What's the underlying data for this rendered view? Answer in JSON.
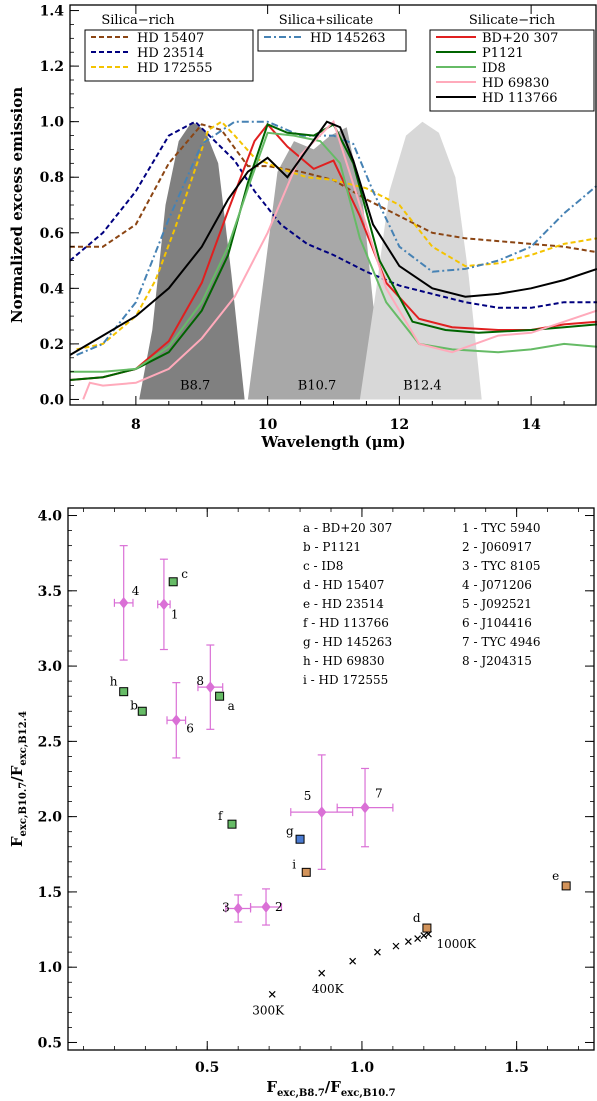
{
  "chart_data": [
    {
      "type": "line",
      "xlabel": "Wavelength (μm)",
      "ylabel": "Normalized excess emission",
      "xlim": [
        7,
        15
      ],
      "ylim": [
        -0.02,
        1.42
      ],
      "xticks": [
        8,
        10,
        12,
        14
      ],
      "yticks": [
        0.0,
        0.2,
        0.4,
        0.6,
        0.8,
        1.0,
        1.2,
        1.4
      ],
      "grid": false,
      "filters": [
        {
          "name": "B8.7",
          "color": "#808080",
          "center": 8.9,
          "halfwidth": 0.65,
          "x": [
            8.05,
            8.25,
            8.45,
            8.65,
            8.85,
            9.05,
            9.25,
            9.45,
            9.65
          ],
          "y": [
            0.0,
            0.25,
            0.7,
            0.93,
            1.0,
            0.97,
            0.85,
            0.45,
            0.0
          ]
        },
        {
          "name": "B10.7",
          "color": "#a8a8a8",
          "center": 10.75,
          "halfwidth": 0.9,
          "x": [
            9.7,
            9.95,
            10.15,
            10.4,
            10.7,
            10.95,
            11.2,
            11.45,
            11.75
          ],
          "y": [
            0.0,
            0.45,
            0.82,
            0.93,
            0.9,
            0.95,
            0.98,
            0.7,
            0.0
          ]
        },
        {
          "name": "B12.4",
          "color": "#d8d8d8",
          "center": 12.35,
          "halfwidth": 0.8,
          "x": [
            11.4,
            11.65,
            11.85,
            12.1,
            12.35,
            12.6,
            12.85,
            13.05,
            13.25
          ],
          "y": [
            0.0,
            0.4,
            0.75,
            0.95,
            1.0,
            0.96,
            0.8,
            0.45,
            0.0
          ]
        }
      ],
      "legend_groups": [
        {
          "title": "Silica−rich",
          "placement": "top-left",
          "entries": [
            "HD 15407",
            "HD 23514",
            "HD 172555"
          ]
        },
        {
          "title": "Silica+silicate",
          "placement": "top-center",
          "entries": [
            "HD 145263"
          ]
        },
        {
          "title": "Silicate−rich",
          "placement": "top-right",
          "entries": [
            "BD+20 307",
            "P1121",
            "ID8",
            "HD 69830",
            "HD 113766"
          ]
        }
      ],
      "series": [
        {
          "name": "HD 15407",
          "color": "#8b4513",
          "dash": "dashed",
          "x": [
            7,
            7.5,
            8,
            8.5,
            9,
            9.3,
            9.7,
            10,
            10.5,
            11,
            11.5,
            12,
            12.5,
            13,
            13.5,
            14,
            14.5,
            15
          ],
          "y": [
            0.55,
            0.55,
            0.63,
            0.85,
            0.99,
            0.97,
            0.84,
            0.84,
            0.82,
            0.79,
            0.72,
            0.66,
            0.6,
            0.58,
            0.57,
            0.56,
            0.55,
            0.53
          ]
        },
        {
          "name": "HD 23514",
          "color": "#00007f",
          "dash": "dashed",
          "x": [
            7,
            7.5,
            8,
            8.5,
            8.9,
            9.2,
            9.5,
            9.8,
            10.2,
            10.6,
            11,
            11.5,
            12,
            12.5,
            13,
            13.5,
            14,
            14.5,
            15
          ],
          "y": [
            0.5,
            0.6,
            0.75,
            0.95,
            1.0,
            0.93,
            0.86,
            0.75,
            0.63,
            0.56,
            0.52,
            0.46,
            0.41,
            0.38,
            0.35,
            0.33,
            0.33,
            0.35,
            0.35
          ]
        },
        {
          "name": "HD 172555",
          "color": "#f4c300",
          "dash": "dashed",
          "x": [
            7.1,
            7.5,
            8,
            8.3,
            8.6,
            8.9,
            9.1,
            9.3,
            9.5,
            9.8,
            10.2,
            10.6,
            11,
            11.5,
            12,
            12.5,
            13,
            13.5,
            14,
            14.5,
            15
          ],
          "y": [
            0.18,
            0.2,
            0.3,
            0.43,
            0.62,
            0.83,
            0.97,
            1.0,
            0.95,
            0.87,
            0.83,
            0.8,
            0.79,
            0.76,
            0.7,
            0.55,
            0.48,
            0.49,
            0.52,
            0.56,
            0.58
          ]
        },
        {
          "name": "HD 145263",
          "color": "#4682b4",
          "dash": "dashdot",
          "x": [
            7.1,
            7.5,
            8,
            8.5,
            9,
            9.5,
            10,
            10.5,
            11,
            11.3,
            11.6,
            12,
            12.5,
            13,
            13.5,
            14,
            14.5,
            15
          ],
          "y": [
            0.16,
            0.2,
            0.35,
            0.65,
            0.92,
            1.0,
            1.0,
            0.95,
            0.95,
            0.92,
            0.75,
            0.55,
            0.46,
            0.47,
            0.5,
            0.55,
            0.67,
            0.77
          ]
        },
        {
          "name": "BD+20 307",
          "color": "#e02020",
          "dash": "solid",
          "x": [
            7,
            7.5,
            8,
            8.5,
            9,
            9.4,
            9.8,
            10,
            10.3,
            10.7,
            11,
            11.4,
            11.8,
            12.3,
            12.8,
            13.5,
            14,
            14.5,
            15
          ],
          "y": [
            0.07,
            0.08,
            0.11,
            0.21,
            0.42,
            0.68,
            0.93,
            0.99,
            0.91,
            0.83,
            0.86,
            0.66,
            0.42,
            0.29,
            0.26,
            0.25,
            0.25,
            0.27,
            0.28
          ]
        },
        {
          "name": "P1121",
          "color": "#006400",
          "dash": "solid",
          "x": [
            7,
            7.5,
            8,
            8.5,
            9,
            9.4,
            9.7,
            10,
            10.3,
            10.7,
            11,
            11.3,
            11.7,
            12.2,
            12.7,
            13.2,
            14,
            14.5,
            15
          ],
          "y": [
            0.07,
            0.08,
            0.11,
            0.17,
            0.32,
            0.52,
            0.78,
            0.99,
            0.96,
            0.95,
            0.99,
            0.85,
            0.5,
            0.28,
            0.25,
            0.24,
            0.25,
            0.26,
            0.27
          ]
        },
        {
          "name": "ID8",
          "color": "#66bb66",
          "dash": "solid",
          "x": [
            7,
            7.5,
            8,
            8.5,
            9,
            9.4,
            9.7,
            10,
            10.4,
            10.8,
            11.1,
            11.4,
            11.8,
            12.3,
            12.8,
            13.5,
            14,
            14.5,
            15
          ],
          "y": [
            0.1,
            0.1,
            0.11,
            0.19,
            0.35,
            0.55,
            0.76,
            0.96,
            0.95,
            0.93,
            0.85,
            0.58,
            0.35,
            0.2,
            0.18,
            0.17,
            0.18,
            0.2,
            0.19
          ]
        },
        {
          "name": "HD 69830",
          "color": "#ffaabb",
          "dash": "solid",
          "x": [
            7.2,
            7.3,
            7.5,
            8,
            8.5,
            9,
            9.5,
            10,
            10.5,
            11,
            11.4,
            11.8,
            12.3,
            12.8,
            13.5,
            14,
            14.5,
            15
          ],
          "y": [
            0.0,
            0.06,
            0.05,
            0.06,
            0.11,
            0.22,
            0.37,
            0.6,
            0.88,
            1.0,
            0.7,
            0.4,
            0.2,
            0.17,
            0.23,
            0.24,
            0.28,
            0.32
          ]
        },
        {
          "name": "HD 113766",
          "color": "#000000",
          "dash": "solid",
          "x": [
            7,
            7.5,
            8,
            8.5,
            9,
            9.4,
            9.7,
            10,
            10.3,
            10.6,
            10.9,
            11.1,
            11.3,
            11.6,
            12,
            12.5,
            13,
            13.5,
            14,
            14.5,
            15
          ],
          "y": [
            0.16,
            0.23,
            0.3,
            0.4,
            0.55,
            0.72,
            0.82,
            0.87,
            0.8,
            0.9,
            1.0,
            0.98,
            0.86,
            0.63,
            0.48,
            0.4,
            0.37,
            0.38,
            0.4,
            0.43,
            0.47
          ]
        }
      ]
    },
    {
      "type": "scatter",
      "xlabel_main": "F",
      "xlabel_sub": "exc,B8.7",
      "xlabel_sep": "/F",
      "xlabel_sub2": "exc,B10.7",
      "ylabel_main": "F",
      "ylabel_sub": "exc,B10.7",
      "ylabel_sep": "/F",
      "ylabel_sub2": "exc,B12.4",
      "xlim": [
        0.05,
        1.75
      ],
      "ylim": [
        0.45,
        4.05
      ],
      "xticks": [
        0.5,
        1.0,
        1.5
      ],
      "xtick_labels": [
        "0.5",
        "1.0",
        "1.5"
      ],
      "yticks": [
        0.5,
        1.0,
        1.5,
        2.0,
        2.5,
        3.0,
        3.5,
        4.0
      ],
      "ytick_labels": [
        "0.5",
        "1.0",
        "1.5",
        "2.0",
        "2.5",
        "3.0",
        "3.5",
        "4.0"
      ],
      "grid": false,
      "legend_placement": "top-right",
      "legend_left": [
        "a - BD+20 307",
        "b - P1121",
        "c - ID8",
        "d - HD 15407",
        "e - HD 23514",
        "f - HD 113766",
        "g - HD 145263",
        "h - HD 69830",
        "i - HD 172555"
      ],
      "legend_right": [
        "1 - TYC 5940",
        "2 - J060917",
        "3 - TYC 8105",
        "4 - J071206",
        "5 - J092521",
        "6 - J104416",
        "7 - TYC 4946",
        "8 - J204315"
      ],
      "letter_points": [
        {
          "label": "a",
          "x": 0.54,
          "y": 2.8,
          "color": "#66bb66"
        },
        {
          "label": "b",
          "x": 0.29,
          "y": 2.7,
          "color": "#66bb66"
        },
        {
          "label": "c",
          "x": 0.39,
          "y": 3.56,
          "color": "#66bb66"
        },
        {
          "label": "d",
          "x": 1.21,
          "y": 1.26,
          "color": "#d2935a"
        },
        {
          "label": "e",
          "x": 1.66,
          "y": 1.54,
          "color": "#d2935a"
        },
        {
          "label": "f",
          "x": 0.58,
          "y": 1.95,
          "color": "#66bb66"
        },
        {
          "label": "g",
          "x": 0.8,
          "y": 1.85,
          "color": "#4a7ad0"
        },
        {
          "label": "h",
          "x": 0.23,
          "y": 2.83,
          "color": "#66bb66"
        },
        {
          "label": "i",
          "x": 0.82,
          "y": 1.63,
          "color": "#d2935a"
        }
      ],
      "number_points": [
        {
          "label": "1",
          "x": 0.36,
          "y": 3.41,
          "xerr": 0.02,
          "yerr": 0.3
        },
        {
          "label": "2",
          "x": 0.69,
          "y": 1.4,
          "xerr": 0.05,
          "yerr": 0.12
        },
        {
          "label": "3",
          "x": 0.6,
          "y": 1.39,
          "xerr": 0.04,
          "yerr": 0.09
        },
        {
          "label": "4",
          "x": 0.23,
          "y": 3.42,
          "xerr": 0.03,
          "yerr": 0.38
        },
        {
          "label": "5",
          "x": 0.87,
          "y": 2.03,
          "xerr": 0.1,
          "yerr": 0.38
        },
        {
          "label": "6",
          "x": 0.4,
          "y": 2.64,
          "xerr": 0.03,
          "yerr": 0.25
        },
        {
          "label": "7",
          "x": 1.01,
          "y": 2.06,
          "xerr": 0.09,
          "yerr": 0.26
        },
        {
          "label": "8",
          "x": 0.51,
          "y": 2.86,
          "xerr": 0.04,
          "yerr": 0.28
        }
      ],
      "blackbody": {
        "x": [
          0.71,
          0.87,
          0.97,
          1.05,
          1.11,
          1.15,
          1.18,
          1.2,
          1.215
        ],
        "y": [
          0.82,
          0.96,
          1.04,
          1.1,
          1.14,
          1.17,
          1.19,
          1.21,
          1.22
        ],
        "labels": [
          {
            "text": "300K",
            "x": 0.71,
            "y": 0.82
          },
          {
            "text": "400K",
            "x": 0.87,
            "y": 0.96
          },
          {
            "text": "1000K",
            "x": 1.215,
            "y": 1.22
          }
        ]
      },
      "number_point_color": "#da70d6"
    }
  ]
}
